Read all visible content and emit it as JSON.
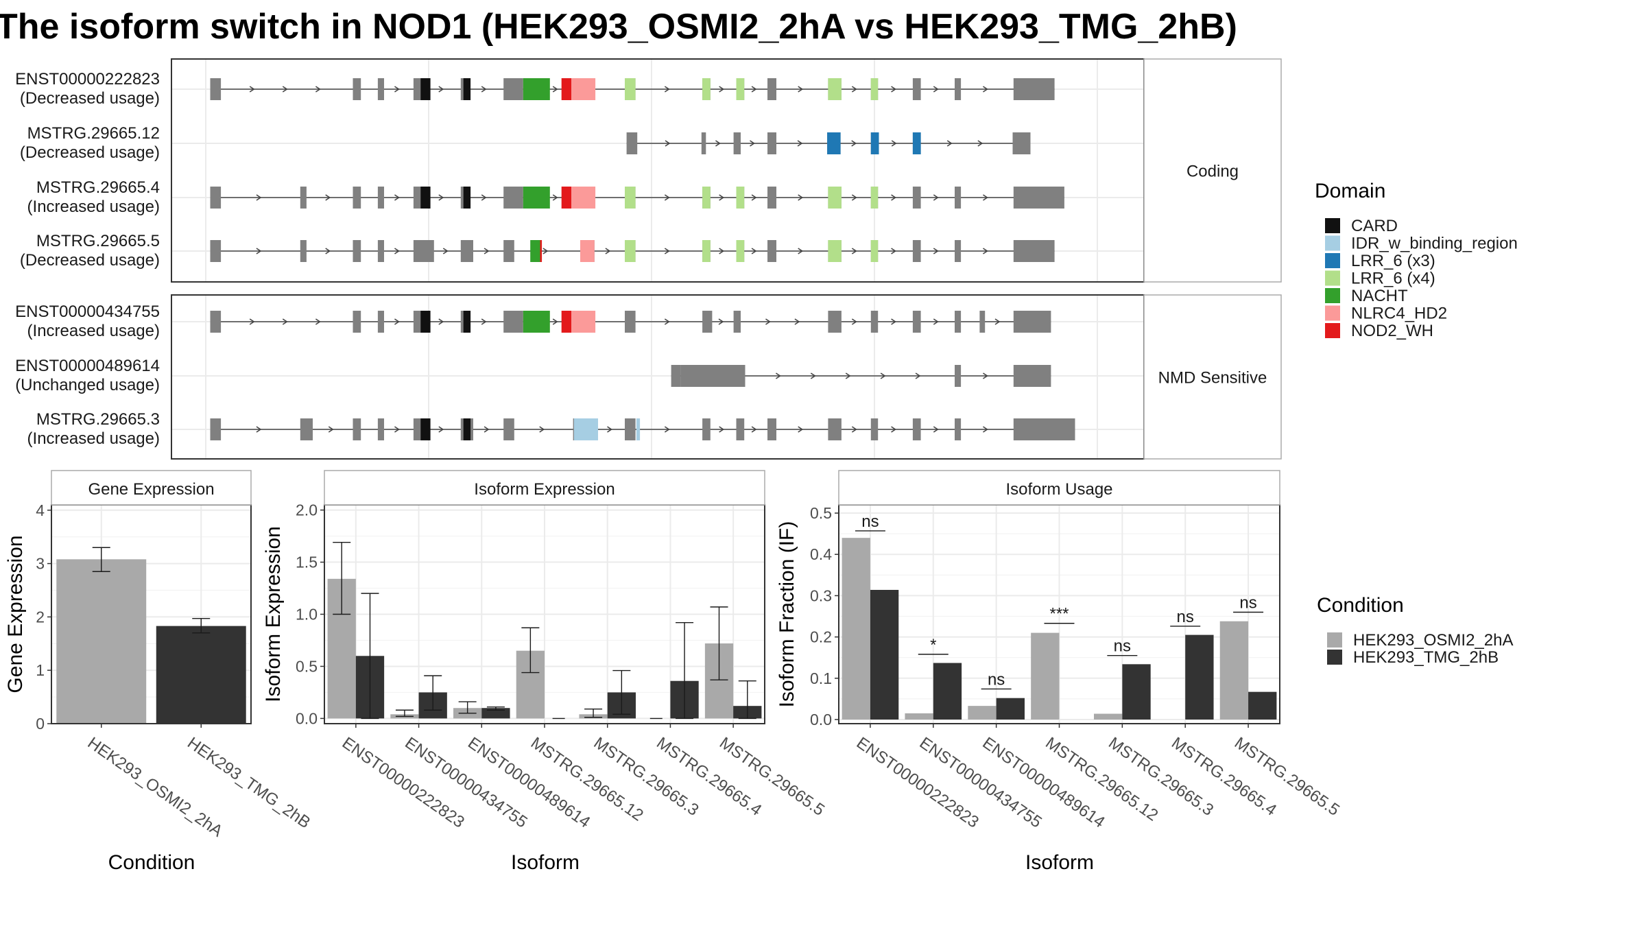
{
  "title": "The isoform switch in NOD1 (HEK293_OSMI2_2hA vs HEK293_TMG_2hB)",
  "colors": {
    "intron": "#444444",
    "exon": "#808080",
    "panel_border": "#333333",
    "strip_border": "#aaaaaa",
    "grid": "#ebebeb",
    "cond_a": "#a9a9a9",
    "cond_b": "#333333",
    "CARD": "#111111",
    "IDR_w_binding_region": "#a6cee3",
    "LRR_6 (x3)": "#1f78b4",
    "LRR_6 (x4)": "#b2df8a",
    "NACHT": "#33a02c",
    "NLRC4_HD2": "#fb9a99",
    "NOD2_WH": "#e31a1c"
  },
  "structure": {
    "genomic_range": [
      0,
      100
    ],
    "groups": [
      {
        "name": "Coding",
        "transcripts": [
          {
            "id": "ENST00000222823",
            "usage": "(Decreased usage)",
            "exons": [
              [
                0.5,
                1.7
              ],
              [
                16.5,
                17.4
              ],
              [
                19.3,
                20
              ],
              [
                23.3,
                24.6
              ],
              [
                28.6,
                29.4
              ],
              [
                33.4,
                35.6
              ],
              [
                47,
                48.2
              ],
              [
                55.7,
                56.6
              ],
              [
                59.5,
                60.4
              ],
              [
                63,
                64
              ],
              [
                69.8,
                71.3
              ],
              [
                74.6,
                75.4
              ],
              [
                79.3,
                80.2
              ],
              [
                84,
                84.7
              ],
              [
                90.6,
                95.2
              ]
            ],
            "features": [
              {
                "d": "CARD",
                "s": 24.1,
                "e": 25.2
              },
              {
                "d": "CARD",
                "s": 28.9,
                "e": 29.7
              },
              {
                "d": "NACHT",
                "s": 35.6,
                "e": 38.6
              },
              {
                "d": "NOD2_WH",
                "s": 39.9,
                "e": 41
              },
              {
                "d": "NLRC4_HD2",
                "s": 41,
                "e": 43.7
              },
              {
                "d": "LRR_6 (x4)",
                "s": 47,
                "e": 48.2
              },
              {
                "d": "LRR_6 (x4)",
                "s": 55.7,
                "e": 56.6
              },
              {
                "d": "LRR_6 (x4)",
                "s": 59.5,
                "e": 60.4
              },
              {
                "d": "LRR_6 (x4)",
                "s": 69.8,
                "e": 71.3
              },
              {
                "d": "LRR_6 (x4)",
                "s": 74.6,
                "e": 75.4
              }
            ]
          },
          {
            "id": "MSTRG.29665.12",
            "usage": "(Decreased usage)",
            "exons": [
              [
                47.2,
                48.4
              ],
              [
                55.6,
                56.1
              ],
              [
                59.2,
                60
              ],
              [
                63,
                64
              ],
              [
                69.7,
                71.2
              ],
              [
                74.6,
                75.5
              ],
              [
                79.3,
                80.2
              ],
              [
                90.5,
                92.5
              ]
            ],
            "features": [
              {
                "d": "LRR_6 (x3)",
                "s": 69.7,
                "e": 71.2
              },
              {
                "d": "LRR_6 (x3)",
                "s": 74.6,
                "e": 75.5
              },
              {
                "d": "LRR_6 (x3)",
                "s": 79.3,
                "e": 80.2
              }
            ]
          },
          {
            "id": "MSTRG.29665.4",
            "usage": "(Increased usage)",
            "exons": [
              [
                0.5,
                1.7
              ],
              [
                10.6,
                11.3
              ],
              [
                16.5,
                17.4
              ],
              [
                19.3,
                20
              ],
              [
                23.3,
                24.6
              ],
              [
                28.6,
                29.4
              ],
              [
                33.4,
                35.6
              ],
              [
                47,
                48.2
              ],
              [
                55.7,
                56.6
              ],
              [
                59.5,
                60.4
              ],
              [
                63,
                64
              ],
              [
                69.8,
                71.3
              ],
              [
                74.6,
                75.4
              ],
              [
                79.3,
                80.2
              ],
              [
                84,
                84.7
              ],
              [
                90.6,
                96.3
              ]
            ],
            "features": [
              {
                "d": "CARD",
                "s": 24.1,
                "e": 25.2
              },
              {
                "d": "CARD",
                "s": 28.9,
                "e": 29.7
              },
              {
                "d": "NACHT",
                "s": 35.6,
                "e": 38.6
              },
              {
                "d": "NOD2_WH",
                "s": 39.9,
                "e": 41
              },
              {
                "d": "NLRC4_HD2",
                "s": 41,
                "e": 43.7
              },
              {
                "d": "LRR_6 (x4)",
                "s": 47,
                "e": 48.2
              },
              {
                "d": "LRR_6 (x4)",
                "s": 55.7,
                "e": 56.6
              },
              {
                "d": "LRR_6 (x4)",
                "s": 59.5,
                "e": 60.4
              },
              {
                "d": "LRR_6 (x4)",
                "s": 69.8,
                "e": 71.3
              },
              {
                "d": "LRR_6 (x4)",
                "s": 74.6,
                "e": 75.4
              }
            ]
          },
          {
            "id": "MSTRG.29665.5",
            "usage": "(Decreased usage)",
            "exons": [
              [
                0.5,
                1.7
              ],
              [
                10.6,
                11.3
              ],
              [
                16.5,
                17.4
              ],
              [
                19.3,
                20
              ],
              [
                23.3,
                25.6
              ],
              [
                28.6,
                30
              ],
              [
                33.4,
                34.6
              ],
              [
                42,
                43.6
              ],
              [
                47,
                48.2
              ],
              [
                55.7,
                56.6
              ],
              [
                59.5,
                60.4
              ],
              [
                63,
                64
              ],
              [
                69.8,
                71.3
              ],
              [
                74.6,
                75.4
              ],
              [
                79.3,
                80.2
              ],
              [
                84,
                84.7
              ],
              [
                90.6,
                95.2
              ]
            ],
            "features": [
              {
                "d": "NACHT",
                "s": 36.4,
                "e": 37.5
              },
              {
                "d": "NOD2_WH",
                "s": 37.5,
                "e": 37.7
              },
              {
                "d": "NLRC4_HD2",
                "s": 42,
                "e": 43.6
              },
              {
                "d": "LRR_6 (x4)",
                "s": 47,
                "e": 48.2
              },
              {
                "d": "LRR_6 (x4)",
                "s": 55.7,
                "e": 56.6
              },
              {
                "d": "LRR_6 (x4)",
                "s": 59.5,
                "e": 60.4
              },
              {
                "d": "LRR_6 (x4)",
                "s": 69.8,
                "e": 71.3
              },
              {
                "d": "LRR_6 (x4)",
                "s": 74.6,
                "e": 75.4
              }
            ]
          }
        ]
      },
      {
        "name": "NMD Sensitive",
        "transcripts": [
          {
            "id": "ENST00000434755",
            "usage": "(Increased usage)",
            "exons": [
              [
                0.5,
                1.7
              ],
              [
                16.5,
                17.4
              ],
              [
                19.3,
                20
              ],
              [
                23.3,
                24.6
              ],
              [
                28.6,
                29.4
              ],
              [
                33.4,
                35.6
              ],
              [
                47,
                48.2
              ],
              [
                55.7,
                56.8
              ],
              [
                59.2,
                60
              ],
              [
                69.8,
                71.3
              ],
              [
                74.6,
                75.4
              ],
              [
                79.3,
                80.2
              ],
              [
                84,
                84.7
              ],
              [
                86.8,
                87.4
              ],
              [
                90.6,
                94.8
              ]
            ],
            "features": [
              {
                "d": "CARD",
                "s": 24.1,
                "e": 25.2
              },
              {
                "d": "CARD",
                "s": 28.9,
                "e": 29.7
              },
              {
                "d": "NACHT",
                "s": 35.6,
                "e": 38.6
              },
              {
                "d": "NOD2_WH",
                "s": 39.9,
                "e": 41
              },
              {
                "d": "NLRC4_HD2",
                "s": 41,
                "e": 43.7
              }
            ]
          },
          {
            "id": "ENST00000489614",
            "usage": "(Unchanged usage)",
            "exons": [
              [
                52.2,
                53.3
              ],
              [
                53.3,
                60.5
              ],
              [
                84,
                84.7
              ],
              [
                90.6,
                94.8
              ]
            ],
            "features": []
          },
          {
            "id": "MSTRG.29665.3",
            "usage": "(Increased usage)",
            "exons": [
              [
                0.5,
                1.7
              ],
              [
                10.6,
                12
              ],
              [
                16.5,
                17.4
              ],
              [
                19.3,
                20
              ],
              [
                23.3,
                24.6
              ],
              [
                28.6,
                30
              ],
              [
                33.4,
                34.6
              ],
              [
                41.2,
                44
              ],
              [
                47,
                48.2
              ],
              [
                55.7,
                56.6
              ],
              [
                59.5,
                60.4
              ],
              [
                63,
                64
              ],
              [
                69.8,
                71.3
              ],
              [
                74.6,
                75.4
              ],
              [
                79.3,
                80.2
              ],
              [
                84,
                84.7
              ],
              [
                90.6,
                97.5
              ]
            ],
            "features": [
              {
                "d": "CARD",
                "s": 24.1,
                "e": 25.2
              },
              {
                "d": "CARD",
                "s": 28.9,
                "e": 29.7
              },
              {
                "d": "IDR_w_binding_region",
                "s": 41.3,
                "e": 44
              },
              {
                "d": "IDR_w_binding_region",
                "s": 48.3,
                "e": 48.7
              }
            ]
          }
        ]
      }
    ]
  },
  "legends": {
    "domain_title": "Domain",
    "domains": [
      "CARD",
      "IDR_w_binding_region",
      "LRR_6 (x3)",
      "LRR_6 (x4)",
      "NACHT",
      "NLRC4_HD2",
      "NOD2_WH"
    ],
    "condition_title": "Condition",
    "conditions": [
      "HEK293_OSMI2_2hA",
      "HEK293_TMG_2hB"
    ]
  },
  "chart_data": [
    {
      "type": "bar",
      "title": "Gene Expression",
      "xlabel": "Condition",
      "ylabel": "Gene Expression",
      "ylim": [
        0,
        4.1
      ],
      "yticks": [
        0,
        1,
        2,
        3,
        4
      ],
      "categories": [
        "HEK293_OSMI2_2hA",
        "HEK293_TMG_2hB"
      ],
      "values": [
        3.08,
        1.83
      ],
      "errors": [
        [
          2.85,
          3.3
        ],
        [
          1.7,
          1.97
        ]
      ]
    },
    {
      "type": "bar",
      "title": "Isoform Expression",
      "xlabel": "Isoform",
      "ylabel": "Isoform Expression",
      "ylim": [
        -0.05,
        2.05
      ],
      "yticks": [
        0.0,
        0.5,
        1.0,
        1.5,
        2.0
      ],
      "categories": [
        "ENST00000222823",
        "ENST00000434755",
        "ENST00000489614",
        "MSTRG.29665.12",
        "MSTRG.29665.3",
        "MSTRG.29665.4",
        "MSTRG.29665.5"
      ],
      "series": [
        {
          "name": "HEK293_OSMI2_2hA",
          "values": [
            1.34,
            0.04,
            0.1,
            0.65,
            0.04,
            0.0,
            0.72
          ],
          "errors": [
            [
              1.0,
              1.69
            ],
            [
              0.02,
              0.08
            ],
            [
              0.05,
              0.16
            ],
            [
              0.44,
              0.87
            ],
            [
              0.01,
              0.09
            ],
            [
              0.0,
              0.0
            ],
            [
              0.37,
              1.07
            ]
          ]
        },
        {
          "name": "HEK293_TMG_2hB",
          "values": [
            0.6,
            0.25,
            0.1,
            0.0,
            0.25,
            0.36,
            0.12
          ],
          "errors": [
            [
              0.0,
              1.2
            ],
            [
              0.08,
              0.41
            ],
            [
              0.08,
              0.11
            ],
            [
              0.0,
              0.0
            ],
            [
              0.04,
              0.46
            ],
            [
              0.0,
              0.92
            ],
            [
              0.0,
              0.36
            ]
          ]
        }
      ]
    },
    {
      "type": "bar",
      "title": "Isoform Usage",
      "xlabel": "Isoform",
      "ylabel": "Isoform Fraction (IF)",
      "ylim": [
        -0.01,
        0.52
      ],
      "yticks": [
        0.0,
        0.1,
        0.2,
        0.3,
        0.4,
        0.5
      ],
      "categories": [
        "ENST00000222823",
        "ENST00000434755",
        "ENST00000489614",
        "MSTRG.29665.12",
        "MSTRG.29665.3",
        "MSTRG.29665.4",
        "MSTRG.29665.5"
      ],
      "series": [
        {
          "name": "HEK293_OSMI2_2hA",
          "values": [
            0.44,
            0.015,
            0.033,
            0.21,
            0.014,
            0.0,
            0.238
          ]
        },
        {
          "name": "HEK293_TMG_2hB",
          "values": [
            0.314,
            0.137,
            0.052,
            0.0,
            0.134,
            0.205,
            0.067
          ]
        }
      ],
      "significance": [
        {
          "label": "ns",
          "y": 0.457
        },
        {
          "label": "*",
          "y": 0.158
        },
        {
          "label": "ns",
          "y": 0.074
        },
        {
          "label": "***",
          "y": 0.233
        },
        {
          "label": "ns",
          "y": 0.155
        },
        {
          "label": "ns",
          "y": 0.226
        },
        {
          "label": "ns",
          "y": 0.26
        }
      ]
    }
  ]
}
